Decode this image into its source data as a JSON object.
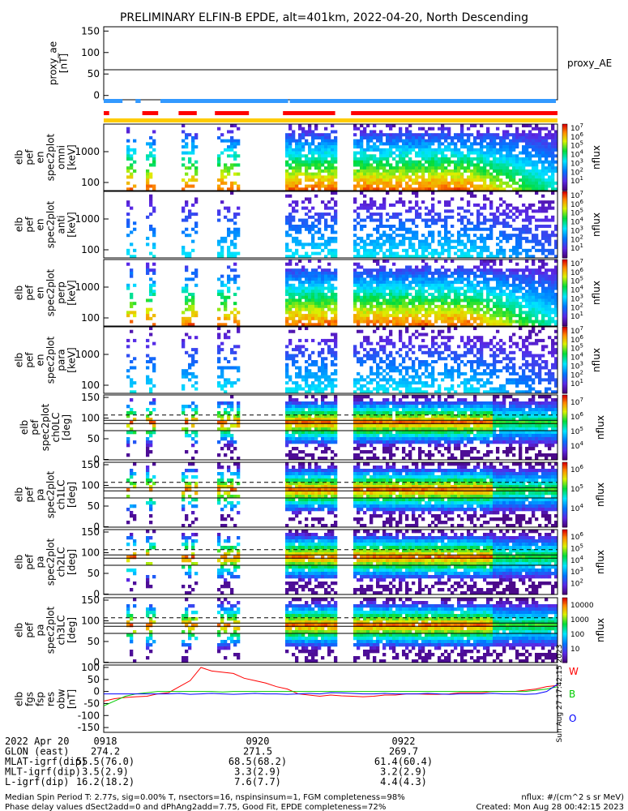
{
  "title": "PRELIMINARY ELFIN-B EPDE, alt=401km, 2022-04-20, North Descending",
  "chart_data": {
    "type": "heatmap",
    "time_ticks": [
      "0918",
      "0920",
      "0922"
    ],
    "ae_panel": {
      "ylabel": [
        "proxy_ae",
        "[nT]"
      ],
      "yticks": [
        "150",
        "100",
        "50",
        "0"
      ],
      "ylim": [
        -10,
        160
      ],
      "values": [
        60,
        60,
        60,
        60
      ],
      "right_label": "proxy_AE"
    },
    "energy_panels": [
      {
        "ylabel": [
          "elb",
          "pef",
          "en",
          "spec2plot",
          "omni",
          "[keV]"
        ],
        "yticks": [
          "1000",
          "100"
        ],
        "cbar": [
          "10",
          "10",
          "10",
          "10",
          "10",
          "10",
          "10"
        ],
        "cbar_exp": [
          "7",
          "6",
          "5",
          "4",
          "3",
          "2",
          "1"
        ],
        "cbar_label": "nflux"
      },
      {
        "ylabel": [
          "elb",
          "pef",
          "en",
          "spec2plot",
          "anti",
          "[keV]"
        ],
        "yticks": [
          "1000",
          "100"
        ],
        "cbar": [
          "10",
          "10",
          "10",
          "10",
          "10",
          "10",
          "10"
        ],
        "cbar_exp": [
          "7",
          "6",
          "5",
          "4",
          "3",
          "2",
          "1"
        ],
        "cbar_label": "nflux"
      },
      {
        "ylabel": [
          "elb",
          "pef",
          "en",
          "spec2plot",
          "perp",
          "[keV]"
        ],
        "yticks": [
          "1000",
          "100"
        ],
        "cbar": [
          "10",
          "10",
          "10",
          "10",
          "10",
          "10",
          "10"
        ],
        "cbar_exp": [
          "7",
          "6",
          "5",
          "4",
          "3",
          "2",
          "1"
        ],
        "cbar_label": "nflux"
      },
      {
        "ylabel": [
          "elb",
          "pef",
          "en",
          "spec2plot",
          "para",
          "[keV]"
        ],
        "yticks": [
          "1000",
          "100"
        ],
        "cbar": [
          "10",
          "10",
          "10",
          "10",
          "10",
          "10",
          "10"
        ],
        "cbar_exp": [
          "7",
          "6",
          "5",
          "4",
          "3",
          "2",
          "1"
        ],
        "cbar_label": "nflux"
      }
    ],
    "pa_panels": [
      {
        "ylabel": [
          "elb",
          "pef",
          "spec2plot",
          "ch0LC",
          "[deg]"
        ],
        "yticks": [
          "150",
          "100",
          "50",
          "0"
        ],
        "cbar": [
          "10",
          "10",
          "10",
          "10"
        ],
        "cbar_exp": [
          "7",
          "6",
          "5",
          "4"
        ],
        "cbar_label": "nflux"
      },
      {
        "ylabel": [
          "elb",
          "pef",
          "pa",
          "spec2plot",
          "ch1LC",
          "[deg]"
        ],
        "yticks": [
          "150",
          "100",
          "50",
          "0"
        ],
        "cbar": [
          "10",
          "10",
          "10"
        ],
        "cbar_exp": [
          "6",
          "5",
          "4"
        ],
        "cbar_label": "nflux"
      },
      {
        "ylabel": [
          "elb",
          "pef",
          "pa",
          "spec2plot",
          "ch2LC",
          "[deg]"
        ],
        "yticks": [
          "150",
          "100",
          "50",
          "0"
        ],
        "cbar": [
          "10",
          "10",
          "10",
          "10",
          "10"
        ],
        "cbar_exp": [
          "6",
          "5",
          "4",
          "3",
          "2"
        ],
        "cbar_label": "nflux"
      },
      {
        "ylabel": [
          "elb",
          "pef",
          "pa",
          "spec2plot",
          "ch3LC",
          "[deg]"
        ],
        "yticks": [
          "150",
          "100",
          "50",
          "0"
        ],
        "cbar": [
          "10000",
          "1000",
          "100",
          "10"
        ],
        "cbar_exp": [
          "",
          "",
          "",
          ""
        ],
        "cbar_label": "nflux"
      }
    ],
    "fgm_panel": {
      "ylabel": [
        "elb",
        "fgs",
        "fsp",
        "res",
        "obw",
        "[nT]"
      ],
      "yticks": [
        "100",
        "50",
        "0",
        "-50",
        "-100",
        "-150"
      ],
      "ylim": [
        -170,
        110
      ],
      "series": [
        {
          "name": "W",
          "color": "#ff0000",
          "values": [
            -40,
            -30,
            -25,
            -22,
            -20,
            -10,
            -5,
            20,
            45,
            100,
            85,
            80,
            75,
            55,
            45,
            35,
            20,
            10,
            -10,
            -15,
            -20,
            -15,
            -18,
            -20,
            -22,
            -20,
            -15,
            -15,
            -10,
            -10,
            -12,
            -12,
            -10,
            -5,
            -5,
            -5,
            0,
            0,
            0,
            5,
            10,
            20,
            25
          ]
        },
        {
          "name": "B",
          "color": "#00cc00",
          "values": [
            -60,
            -40,
            -20,
            -10,
            -5,
            0,
            0,
            0,
            0,
            0,
            0,
            -2,
            0,
            0,
            0,
            0,
            0,
            0,
            0,
            0,
            0,
            0,
            0,
            0,
            0,
            0,
            0,
            0,
            0,
            0,
            0,
            0,
            0,
            0,
            0,
            0,
            0,
            0,
            0,
            0,
            5,
            10,
            20
          ]
        },
        {
          "name": "O",
          "color": "#0000ff",
          "values": [
            -10,
            -10,
            -10,
            -10,
            -10,
            -10,
            -10,
            -8,
            -12,
            -10,
            -8,
            -10,
            -12,
            -10,
            -8,
            -10,
            -10,
            -12,
            -10,
            -8,
            -10,
            -5,
            -6,
            -8,
            -10,
            -10,
            -8,
            -10,
            -10,
            -10,
            -8,
            -10,
            -12,
            -10,
            -10,
            -10,
            -8,
            -10,
            -10,
            -12,
            -10,
            0,
            30
          ]
        }
      ]
    }
  },
  "ephemeris": {
    "rows": [
      [
        "2022 Apr 20",
        "0918",
        "0920",
        "0922"
      ],
      [
        "GLON (east)",
        "274.2",
        "271.5",
        "269.7"
      ],
      [
        "MLAT-igrf(dip)",
        "55.5(76.0)",
        "68.5(68.2)",
        "61.4(60.4)"
      ],
      [
        "MLT-igrf(dip)",
        "3.5(2.9)",
        "3.3(2.9)",
        "3.2(2.9)"
      ],
      [
        "L-igrf(dip)",
        "16.2(18.2)",
        "7.6(7.7)",
        "4.4(4.3)"
      ]
    ]
  },
  "footer": {
    "line1": "Median Spin Period T: 2.77s, sig=0.00% T, nsectors=16, nspinsinsum=1, FGM completeness=98%",
    "line2": "Phase delay values dSect2add=0 and dPhAng2add=7.75, Good Fit, EPDE completeness=72%",
    "units": "nflux: #/(cm^2 s sr MeV)",
    "created": "Created: Mon Aug 28 00:42:15 2023",
    "side_stamp": "Sun Aug 27 17:42:15 2023"
  },
  "colors": {
    "sci_bar": "#ff0000",
    "ae_bar": "#3399ff",
    "ws_bar": "#ffcc00",
    "W": "#ff0000",
    "B": "#00cc00",
    "O": "#0000ff"
  }
}
